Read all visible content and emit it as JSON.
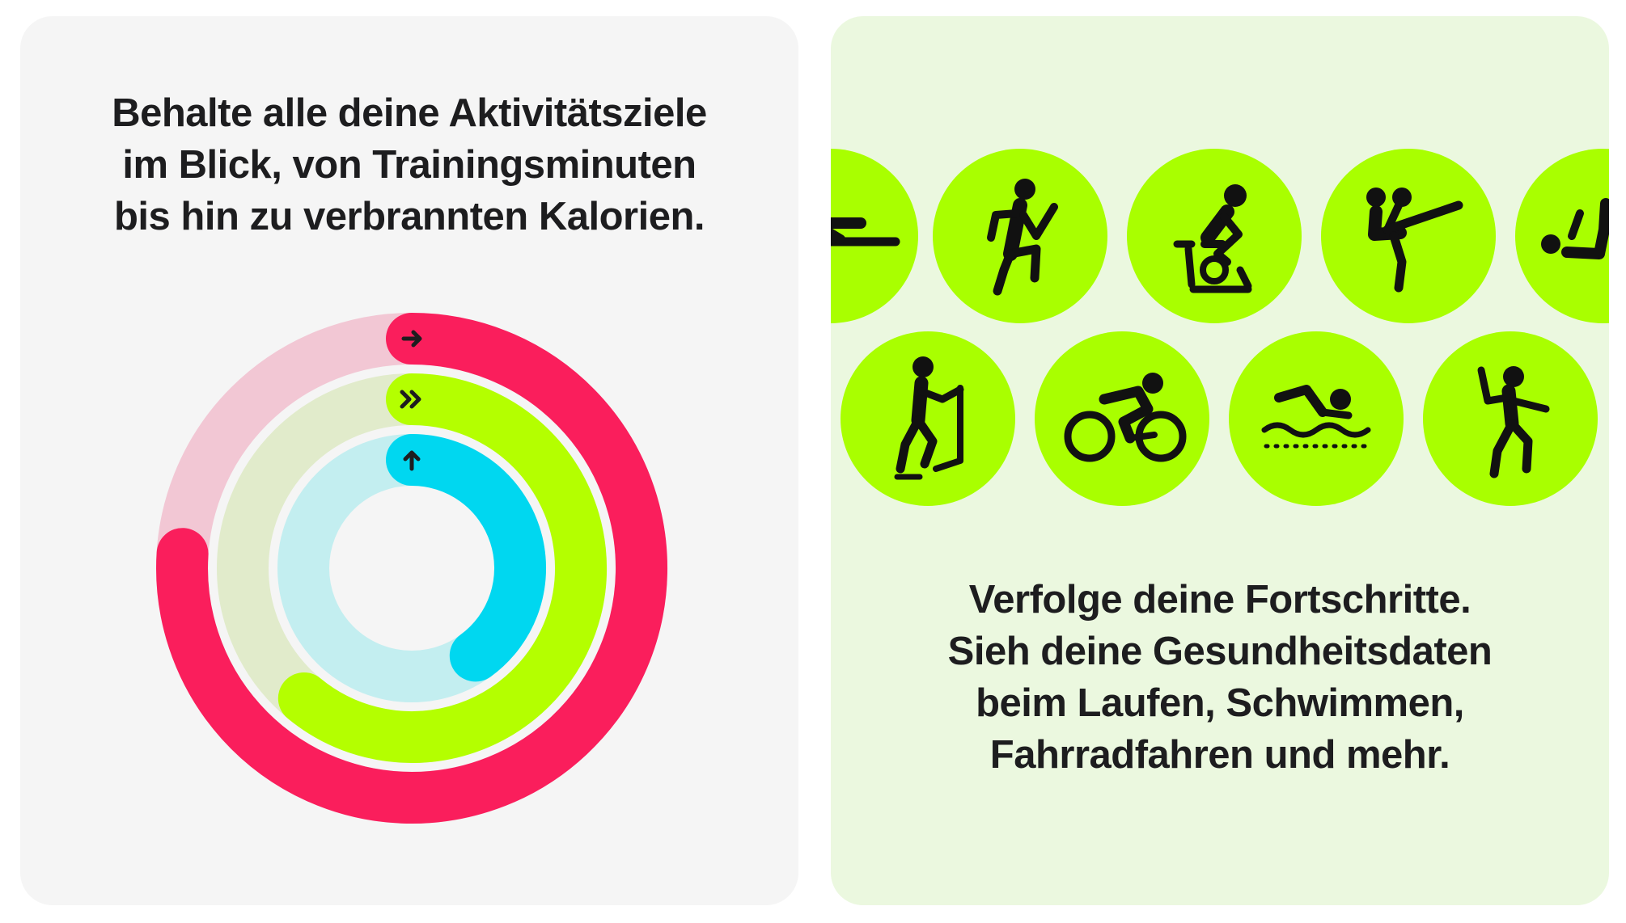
{
  "colors": {
    "move": "#fa1e5c",
    "move_track": "#f2c7d4",
    "exercise": "#b4ff00",
    "exercise_track": "#e1ebcb",
    "stand": "#00d7f0",
    "stand_track": "#c3eef0",
    "tile_green": "#a9ff00",
    "left_bg": "#f5f5f5",
    "right_bg": "#ebf8df",
    "text": "#1d1d1f"
  },
  "left_card": {
    "headline_lines": [
      "Behalte alle deine Aktivitätsziele",
      "im Blick, von Trainingsminuten",
      "bis hin zu verbrannten Kalorien."
    ],
    "rings": [
      {
        "name": "move",
        "progress": 0.76,
        "icon": "arrow-right-icon"
      },
      {
        "name": "exercise",
        "progress": 0.61,
        "icon": "double-chevron-right-icon"
      },
      {
        "name": "stand",
        "progress": 0.4,
        "icon": "arrow-up-icon"
      }
    ]
  },
  "right_card": {
    "workout_icons_row1": [
      "rowing-icon",
      "running-icon",
      "indoor-cycle-icon",
      "kickboxing-icon",
      "core-training-icon"
    ],
    "workout_icons_row2": [
      "elliptical-icon",
      "cycling-icon",
      "swimming-icon",
      "dance-icon"
    ],
    "headline_lines": [
      "Verfolge deine Fortschritte.",
      "Sieh deine Gesundheitsdaten",
      "beim Laufen, Schwimmen,",
      "Fahrradfahren und mehr."
    ]
  }
}
